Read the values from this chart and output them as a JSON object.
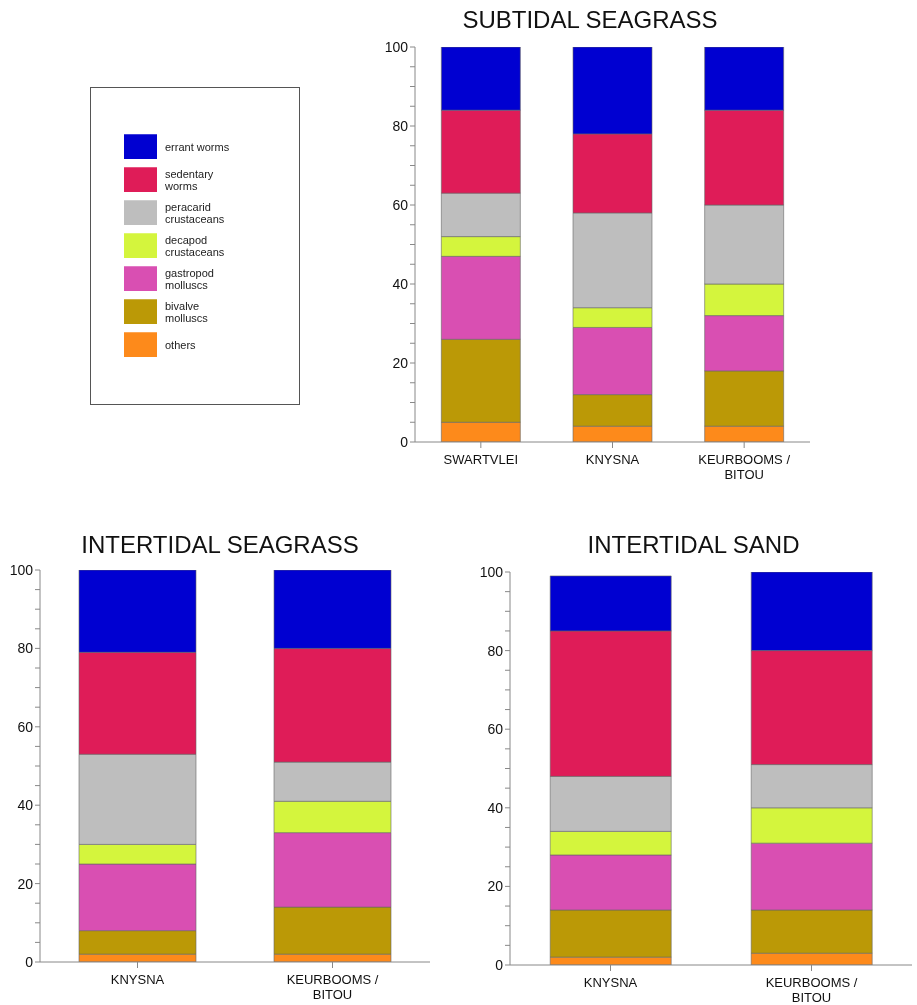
{
  "chart_data": [
    {
      "type": "bar",
      "title": "SUBTIDAL SEAGRASS",
      "categories": [
        "SWARTVLEI",
        "KNYSNA",
        "KEURBOOMS / BITOU"
      ],
      "stacked": true,
      "legend": "left",
      "ylim": [
        0,
        100
      ],
      "yticks": [
        0,
        {
          "value": 5,
          "label": null
        },
        {
          "value": 10,
          "label": null
        },
        {
          "value": 15,
          "label": null
        },
        20,
        {
          "value": 25,
          "label": null
        },
        {
          "value": 30,
          "label": null
        },
        {
          "value": 35,
          "label": null
        },
        40,
        {
          "value": 45,
          "label": null
        },
        {
          "value": 50,
          "label": null
        },
        {
          "value": 55,
          "label": null
        },
        60,
        {
          "value": 65,
          "label": null
        },
        {
          "value": 70,
          "label": null
        },
        {
          "value": 75,
          "label": null
        },
        80,
        {
          "value": 85,
          "label": null
        },
        {
          "value": 90,
          "label": null
        },
        {
          "value": 95,
          "label": null
        },
        100
      ],
      "series": [
        {
          "name": "others",
          "color": "#fd8a1b",
          "values": [
            5,
            4,
            4
          ]
        },
        {
          "name": "bivalve molluscs",
          "color": "#bb9906",
          "values": [
            21,
            8,
            14
          ]
        },
        {
          "name": "gastropod molluscs",
          "color": "#d94fb2",
          "values": [
            21,
            17,
            14
          ]
        },
        {
          "name": "decapod crustaceans",
          "color": "#d4f53d",
          "values": [
            5,
            5,
            8
          ]
        },
        {
          "name": "peracarid crustaceans",
          "color": "#bebebe",
          "values": [
            11,
            24,
            20
          ]
        },
        {
          "name": "sedentary worms",
          "color": "#df1c58",
          "values": [
            21,
            20,
            24
          ]
        },
        {
          "name": "errant worms",
          "color": "#0000d1",
          "values": [
            16,
            22,
            16
          ]
        }
      ]
    },
    {
      "type": "bar",
      "title": "INTERTIDAL SEAGRASS",
      "categories": [
        "KNYSNA",
        "KEURBOOMS / BITOU"
      ],
      "stacked": true,
      "ylim": [
        0,
        100
      ],
      "yticks": [
        0,
        {
          "value": 5,
          "label": null
        },
        {
          "value": 10,
          "label": null
        },
        {
          "value": 15,
          "label": null
        },
        20,
        {
          "value": 25,
          "label": null
        },
        {
          "value": 30,
          "label": null
        },
        {
          "value": 35,
          "label": null
        },
        40,
        {
          "value": 45,
          "label": null
        },
        {
          "value": 50,
          "label": null
        },
        {
          "value": 55,
          "label": null
        },
        60,
        {
          "value": 65,
          "label": null
        },
        {
          "value": 70,
          "label": null
        },
        {
          "value": 75,
          "label": null
        },
        80,
        {
          "value": 85,
          "label": null
        },
        {
          "value": 90,
          "label": null
        },
        {
          "value": 95,
          "label": null
        },
        100
      ],
      "series": [
        {
          "color": "#fd8a1b",
          "values": [
            2,
            2
          ]
        },
        {
          "color": "#bb9906",
          "values": [
            6,
            12
          ]
        },
        {
          "color": "#d94fb2",
          "values": [
            17,
            19
          ]
        },
        {
          "color": "#d4f53d",
          "values": [
            5,
            8
          ]
        },
        {
          "color": "#bebebe",
          "values": [
            23,
            10
          ]
        },
        {
          "color": "#df1c58",
          "values": [
            26,
            29
          ]
        },
        {
          "color": "#0000d1",
          "values": [
            21,
            20
          ]
        }
      ]
    },
    {
      "type": "bar",
      "title": "INTERTIDAL SAND",
      "categories": [
        "KNYSNA",
        "KEURBOOMS / BITOU"
      ],
      "stacked": true,
      "ylim": [
        0,
        100
      ],
      "yticks": [
        0,
        {
          "value": 5,
          "label": null
        },
        {
          "value": 10,
          "label": null
        },
        {
          "value": 15,
          "label": null
        },
        20,
        {
          "value": 25,
          "label": null
        },
        {
          "value": 30,
          "label": null
        },
        {
          "value": 35,
          "label": null
        },
        40,
        {
          "value": 45,
          "label": null
        },
        {
          "value": 50,
          "label": null
        },
        {
          "value": 55,
          "label": null
        },
        60,
        {
          "value": 65,
          "label": null
        },
        {
          "value": 70,
          "label": null
        },
        {
          "value": 75,
          "label": null
        },
        80,
        {
          "value": 85,
          "label": null
        },
        {
          "value": 90,
          "label": null
        },
        {
          "value": 95,
          "label": null
        },
        100
      ],
      "series": [
        {
          "color": "#fd8a1b",
          "values": [
            2,
            3
          ]
        },
        {
          "color": "#bb9906",
          "values": [
            12,
            11
          ]
        },
        {
          "color": "#d94fb2",
          "values": [
            14,
            17
          ]
        },
        {
          "color": "#d4f53d",
          "values": [
            6,
            9
          ]
        },
        {
          "color": "#bebebe",
          "values": [
            14,
            11
          ]
        },
        {
          "color": "#df1c58",
          "values": [
            37,
            29
          ]
        },
        {
          "color": "#0000d1",
          "values": [
            14,
            20
          ]
        }
      ]
    }
  ]
}
